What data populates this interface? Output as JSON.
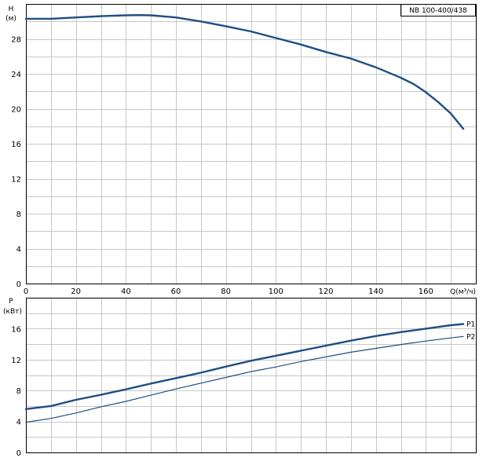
{
  "chart_data": [
    {
      "type": "line",
      "title": "NB 100-400/438",
      "ylabel": "H",
      "yunit": "(м)",
      "xlabel": "Q(м³/ч)",
      "xlim": [
        0,
        180
      ],
      "ylim": [
        0,
        32
      ],
      "xticks": [
        "0",
        "20",
        "40",
        "60",
        "80",
        "100",
        "120",
        "140",
        "160"
      ],
      "yticks": [
        "0",
        "4",
        "8",
        "12",
        "16",
        "20",
        "24",
        "28"
      ],
      "grid": true,
      "series": [
        {
          "x": [
            0,
            10,
            20,
            30,
            40,
            45,
            50,
            60,
            70,
            80,
            90,
            100,
            110,
            120,
            130,
            140,
            150,
            155,
            160,
            165,
            170,
            175
          ],
          "y": [
            30.3,
            30.3,
            30.45,
            30.6,
            30.7,
            30.72,
            30.7,
            30.45,
            30.0,
            29.45,
            28.85,
            28.1,
            27.35,
            26.5,
            25.75,
            24.75,
            23.55,
            22.85,
            21.9,
            20.75,
            19.45,
            17.7
          ]
        }
      ]
    },
    {
      "type": "line",
      "ylabel": "P",
      "yunit": "(кВт)",
      "xlim": [
        0,
        180
      ],
      "ylim": [
        0,
        20
      ],
      "yticks": [
        "0",
        "4",
        "8",
        "12",
        "16"
      ],
      "grid": true,
      "legend": "right",
      "series": [
        {
          "name": "P1",
          "x": [
            0,
            10,
            20,
            30,
            40,
            50,
            60,
            70,
            80,
            90,
            100,
            110,
            120,
            130,
            140,
            150,
            160,
            170,
            175
          ],
          "y": [
            5.6,
            6.0,
            6.8,
            7.45,
            8.15,
            8.9,
            9.6,
            10.3,
            11.1,
            11.85,
            12.5,
            13.15,
            13.8,
            14.45,
            15.05,
            15.55,
            16.0,
            16.45,
            16.6
          ]
        },
        {
          "name": "P2",
          "x": [
            0,
            10,
            20,
            30,
            40,
            50,
            60,
            70,
            80,
            90,
            100,
            110,
            120,
            130,
            140,
            150,
            160,
            170,
            175
          ],
          "y": [
            3.9,
            4.4,
            5.1,
            5.9,
            6.6,
            7.4,
            8.2,
            8.95,
            9.7,
            10.45,
            11.05,
            11.75,
            12.35,
            12.95,
            13.45,
            13.95,
            14.4,
            14.8,
            15.0
          ]
        }
      ]
    }
  ]
}
